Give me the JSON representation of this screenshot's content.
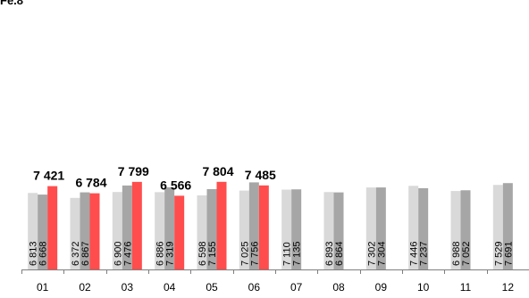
{
  "corner_label": "Fe.8",
  "colors": {
    "series_1": "#d9d9d9",
    "series_2": "#a6a6a6",
    "series_3": "#ff4d4d",
    "axis": "#7f7f7f",
    "text": "#000000"
  },
  "chart_data": {
    "type": "bar",
    "title": "",
    "xlabel": "",
    "ylabel": "",
    "grid": false,
    "legend": "none",
    "ylim": [
      0,
      24000
    ],
    "categories": [
      "01",
      "02",
      "03",
      "04",
      "05",
      "06",
      "07",
      "08",
      "09",
      "10",
      "11",
      "12"
    ],
    "series": [
      {
        "values": [
          6813,
          6372,
          6900,
          6886,
          6598,
          7025,
          7110,
          6893,
          7302,
          7446,
          6988,
          7529
        ],
        "value_labels": [
          "6 813",
          "6 372",
          "6 900",
          "6 886",
          "6 598",
          "7 025",
          "7 110",
          "6 893",
          "7 302",
          "7 446",
          "6 988",
          "7 529"
        ]
      },
      {
        "values": [
          6668,
          6867,
          7476,
          7319,
          7155,
          7756,
          7135,
          6864,
          7304,
          7237,
          7052,
          7691
        ],
        "value_labels": [
          "6 668",
          "6 867",
          "7 476",
          "7 319",
          "7 155",
          "7 756",
          "7 135",
          "6 864",
          "7 304",
          "7 237",
          "7 052",
          "7 691"
        ]
      },
      {
        "values": [
          7421,
          6784,
          7799,
          6566,
          7804,
          7485,
          null,
          null,
          null,
          null,
          null,
          null
        ],
        "value_labels": [
          "7 421",
          "6 784",
          "7 799",
          "6 566",
          "7 804",
          "7 485",
          "",
          "",
          "",
          "",
          "",
          ""
        ]
      }
    ]
  }
}
